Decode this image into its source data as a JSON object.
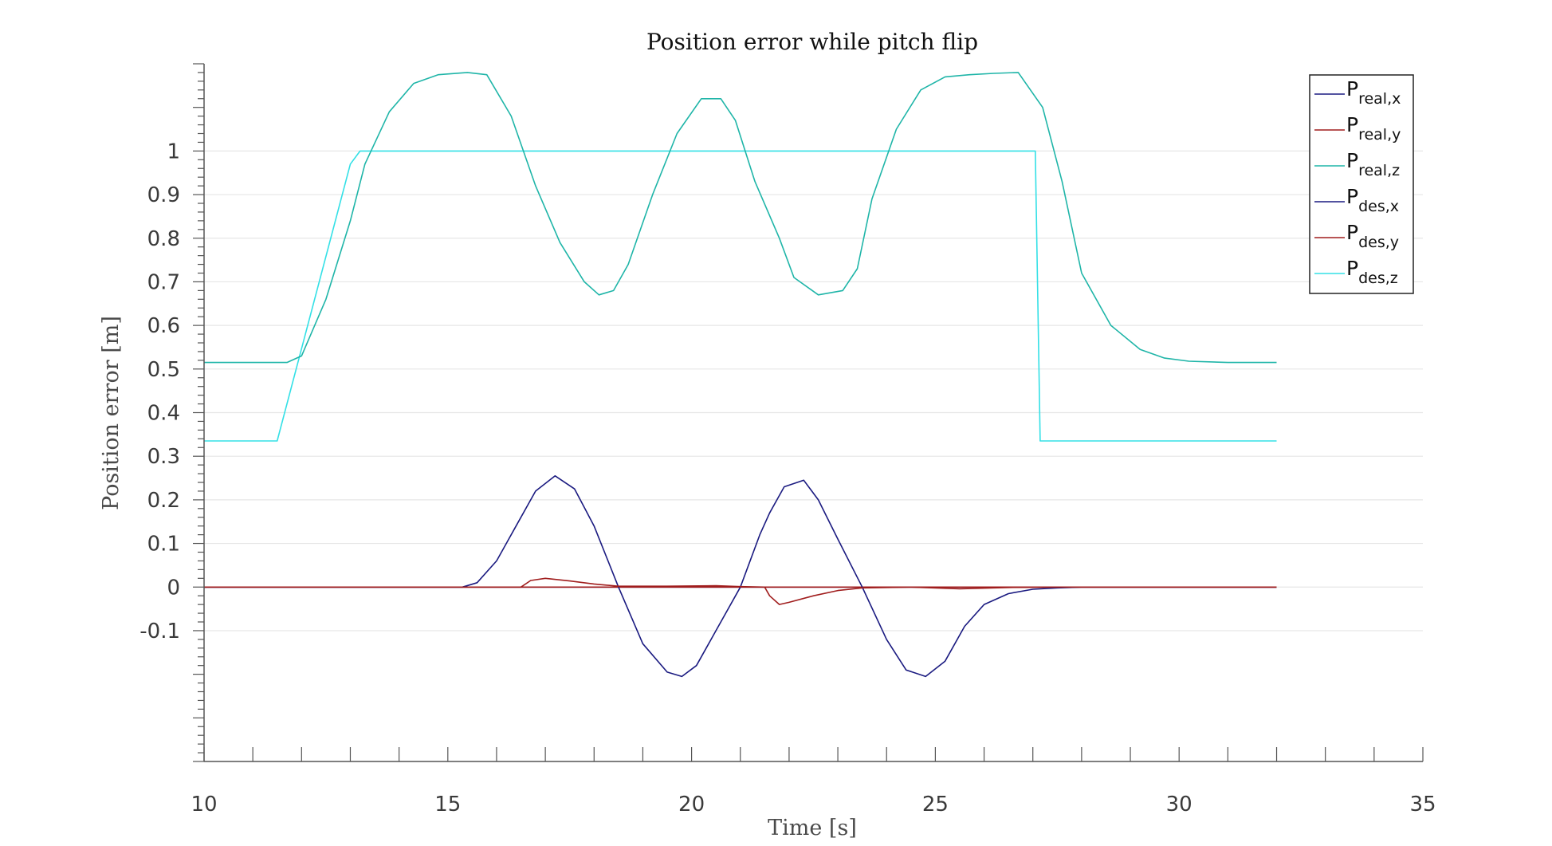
{
  "chart_data": {
    "type": "line",
    "title": "Position error while pitch flip",
    "xlabel": "Time [s]",
    "ylabel": "Position error [m]",
    "xlim": [
      10,
      35
    ],
    "ylim": [
      -0.4,
      1.2
    ],
    "xticks": [
      10,
      15,
      20,
      25,
      30,
      35
    ],
    "xtick_labels": [
      "10",
      "15",
      "20",
      "25",
      "30",
      "35"
    ],
    "yticks": [
      1,
      0.9,
      0.8,
      0.7,
      0.6,
      0.5,
      0.4,
      0.3,
      0.2,
      0.1,
      0,
      -0.1
    ],
    "ytick_labels": [
      "1",
      "0.9",
      "0.8",
      "0.7",
      "0.6",
      "0.5",
      "0.4",
      "0.3",
      "0.2",
      "0.1",
      "0",
      "-0.1"
    ],
    "grid": "horizontal",
    "legend_position": "top-right",
    "series": [
      {
        "name": "P_real,x",
        "legend_main": "P",
        "legend_sub": "real,x",
        "color": "#1a1a80",
        "x": [
          10,
          15.3,
          15.6,
          16.0,
          16.4,
          16.8,
          17.2,
          17.6,
          18.0,
          18.5,
          19.0,
          19.5,
          19.8,
          20.1,
          20.5,
          21.0,
          21.4,
          21.6,
          21.9,
          22.3,
          22.6,
          23.0,
          23.5,
          24.0,
          24.4,
          24.8,
          25.2,
          25.6,
          26.0,
          26.5,
          27.0,
          27.5,
          28.0,
          32.0
        ],
        "y": [
          0,
          0,
          0.01,
          0.06,
          0.14,
          0.22,
          0.255,
          0.225,
          0.14,
          0.0,
          -0.13,
          -0.195,
          -0.205,
          -0.18,
          -0.1,
          0.0,
          0.12,
          0.17,
          0.23,
          0.245,
          0.2,
          0.11,
          0.0,
          -0.12,
          -0.19,
          -0.205,
          -0.17,
          -0.09,
          -0.04,
          -0.015,
          -0.005,
          -0.002,
          0,
          0
        ]
      },
      {
        "name": "P_real,y",
        "legend_main": "P",
        "legend_sub": "real,y",
        "color": "#a01d1d",
        "x": [
          10,
          16.5,
          16.7,
          17.0,
          17.5,
          18.0,
          18.5,
          19.5,
          20.5,
          21.0,
          21.5,
          21.6,
          21.8,
          22.0,
          22.5,
          23.0,
          23.5,
          24.5,
          25.5,
          26.5,
          27.5,
          32.0
        ],
        "y": [
          0,
          0,
          0.015,
          0.02,
          0.014,
          0.007,
          0.002,
          0.002,
          0.003,
          0.001,
          0.0,
          -0.02,
          -0.04,
          -0.035,
          -0.02,
          -0.008,
          -0.002,
          0.0,
          -0.004,
          -0.001,
          0,
          0
        ]
      },
      {
        "name": "P_real,z",
        "legend_main": "P",
        "legend_sub": "real,z",
        "color": "#1fb5a8",
        "x": [
          10,
          11.7,
          12.0,
          12.5,
          13.0,
          13.3,
          13.8,
          14.3,
          14.8,
          15.4,
          15.8,
          16.3,
          16.8,
          17.3,
          17.8,
          18.1,
          18.4,
          18.7,
          19.2,
          19.7,
          20.2,
          20.6,
          20.9,
          21.3,
          21.8,
          22.1,
          22.6,
          23.1,
          23.4,
          23.7,
          24.2,
          24.7,
          25.2,
          25.7,
          26.2,
          26.7,
          27.2,
          27.6,
          28.0,
          28.6,
          29.2,
          29.7,
          30.2,
          31.0,
          32.0
        ],
        "y": [
          0.515,
          0.515,
          0.53,
          0.66,
          0.84,
          0.97,
          1.09,
          1.155,
          1.175,
          1.18,
          1.175,
          1.08,
          0.92,
          0.79,
          0.7,
          0.67,
          0.68,
          0.74,
          0.9,
          1.04,
          1.12,
          1.12,
          1.07,
          0.93,
          0.8,
          0.71,
          0.67,
          0.68,
          0.73,
          0.89,
          1.05,
          1.14,
          1.17,
          1.175,
          1.178,
          1.18,
          1.1,
          0.93,
          0.72,
          0.6,
          0.545,
          0.525,
          0.518,
          0.515,
          0.515
        ]
      },
      {
        "name": "P_des,x",
        "legend_main": "P",
        "legend_sub": "des,x",
        "color": "#1a1a80",
        "x": [
          10,
          32.0
        ],
        "y": [
          0,
          0
        ]
      },
      {
        "name": "P_des,y",
        "legend_main": "P",
        "legend_sub": "des,y",
        "color": "#a01d1d",
        "x": [
          10,
          32.0
        ],
        "y": [
          0,
          0
        ]
      },
      {
        "name": "P_des,z",
        "legend_main": "P",
        "legend_sub": "des,z",
        "color": "#33e0e6",
        "x": [
          10,
          11.5,
          13.0,
          13.2,
          27.05,
          27.15,
          32.0
        ],
        "y": [
          0.335,
          0.335,
          0.97,
          1.0,
          1.0,
          0.335,
          0.335
        ]
      }
    ]
  }
}
